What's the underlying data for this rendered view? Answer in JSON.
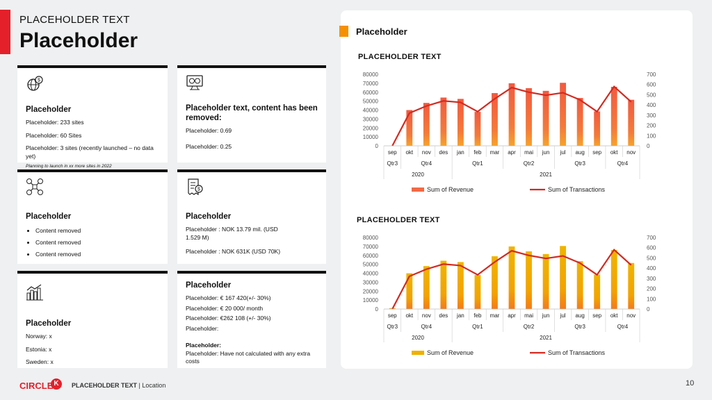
{
  "header": {
    "subtitle": "PLACEHOLDER TEXT",
    "title": "Placeholder"
  },
  "cards": {
    "c1": {
      "heading": "Placeholder",
      "l1": "Placeholder: 233 sites",
      "l2": "Placeholder: 60 Sites",
      "l3": "Placeholder: 3 sites (recently launched – no data yet)",
      "note": "Planning to launch in xx more sites in 2022"
    },
    "c2": {
      "heading": "Placeholder text, content has been removed:",
      "l1": "Placeholder: 0.69",
      "l2": "Placeholder: 0.25"
    },
    "c3": {
      "heading": "Placeholder",
      "items": [
        "Content removed",
        "Content removed",
        "Content removed"
      ]
    },
    "c4": {
      "heading": "Placeholder",
      "l1": "Placeholder : NOK 13.79 mil. (USD 1.529 M)",
      "l2": "Placeholder : NOK 631K (USD 70K)"
    },
    "c5": {
      "heading": "Placeholder",
      "l1": "Norway: x",
      "l2": "Estonia: x",
      "l3": "Sweden: x"
    },
    "c6": {
      "heading": "Placeholder",
      "l1": "Placeholder: € 167 420(+/- 30%)",
      "l2": "Placeholder: € 20 000/ month",
      "l3": "Placeholder: €262 108 (+/- 30%)",
      "l4": "Placeholder:",
      "l5": "Placeholder:",
      "l6": "Placeholder: Have not calculated with any extra costs"
    }
  },
  "panel": {
    "title": "Placeholder"
  },
  "chart_data": [
    {
      "type": "bar",
      "title": "PLACEHOLDER TEXT",
      "categories": [
        "sep",
        "okt",
        "nov",
        "des",
        "jan",
        "feb",
        "mar",
        "apr",
        "mai",
        "jun",
        "jul",
        "aug",
        "sep",
        "okt",
        "nov"
      ],
      "quarters": [
        {
          "label": "Qtr3",
          "span": 1
        },
        {
          "label": "Qtr4",
          "span": 3
        },
        {
          "label": "Qtr1",
          "span": 3
        },
        {
          "label": "Qtr2",
          "span": 3
        },
        {
          "label": "Qtr3",
          "span": 3
        },
        {
          "label": "Qtr4",
          "span": 2
        }
      ],
      "years": [
        {
          "label": "2020",
          "span": 4
        },
        {
          "label": "2021",
          "span": 11
        }
      ],
      "series": [
        {
          "name": "Sum of Revenue",
          "type": "bar",
          "axis": "left",
          "color": "#f26a45",
          "values": [
            0,
            40000,
            48000,
            54000,
            52500,
            38000,
            59000,
            70000,
            64500,
            61500,
            70500,
            53500,
            38500,
            66000,
            51500
          ]
        },
        {
          "name": "Sum of Transactions",
          "type": "line",
          "axis": "right",
          "color": "#d42a20",
          "values": [
            0,
            320,
            390,
            440,
            425,
            335,
            460,
            570,
            525,
            495,
            520,
            450,
            335,
            580,
            430
          ]
        }
      ],
      "ylim_left": [
        0,
        80000
      ],
      "ylim_right": [
        0,
        700
      ],
      "left_ticks": [
        "80000",
        "70000",
        "60000",
        "50000",
        "40000",
        "30000",
        "20000",
        "10000",
        "0"
      ],
      "right_ticks": [
        "700",
        "600",
        "500",
        "400",
        "300",
        "200",
        "100",
        "0"
      ],
      "legend": "bottom",
      "bar_style": "salmon"
    },
    {
      "type": "bar",
      "title": "PLACEHOLDER TEXT",
      "categories": [
        "sep",
        "okt",
        "nov",
        "des",
        "jan",
        "feb",
        "mar",
        "apr",
        "mai",
        "jun",
        "jul",
        "aug",
        "sep",
        "okt",
        "nov"
      ],
      "quarters": [
        {
          "label": "Qtr3",
          "span": 1
        },
        {
          "label": "Qtr4",
          "span": 3
        },
        {
          "label": "Qtr1",
          "span": 3
        },
        {
          "label": "Qtr2",
          "span": 3
        },
        {
          "label": "Qtr3",
          "span": 3
        },
        {
          "label": "Qtr4",
          "span": 2
        }
      ],
      "years": [
        {
          "label": "2020",
          "span": 4
        },
        {
          "label": "2021",
          "span": 11
        }
      ],
      "series": [
        {
          "name": "Sum of Revenue",
          "type": "bar",
          "axis": "left",
          "color": "#f0b000",
          "values": [
            1000,
            40000,
            48000,
            54000,
            52500,
            38000,
            59000,
            70000,
            64500,
            61500,
            70500,
            53500,
            38500,
            66000,
            51500
          ]
        },
        {
          "name": "Sum of Transactions",
          "type": "line",
          "axis": "right",
          "color": "#d42a20",
          "values": [
            0,
            320,
            390,
            440,
            425,
            335,
            460,
            570,
            525,
            495,
            520,
            450,
            335,
            580,
            430
          ]
        }
      ],
      "ylim_left": [
        0,
        80000
      ],
      "ylim_right": [
        0,
        700
      ],
      "left_ticks": [
        "80000",
        "70000",
        "60000",
        "50000",
        "40000",
        "30000",
        "20000",
        "10000",
        "0"
      ],
      "right_ticks": [
        "700",
        "600",
        "500",
        "400",
        "300",
        "200",
        "100",
        "0"
      ],
      "legend": "bottom",
      "bar_style": "yellow"
    }
  ],
  "footer": {
    "brand": "CIRCLE",
    "brand_k": "K",
    "text_main": "PLACEHOLDER TEXT",
    "text_sep": "| Location",
    "page": "10"
  },
  "icons": [
    "globe-dollar-icon",
    "monitor-exchange-icon",
    "drone-icon",
    "invoice-dollar-icon",
    "city-chart-icon"
  ]
}
